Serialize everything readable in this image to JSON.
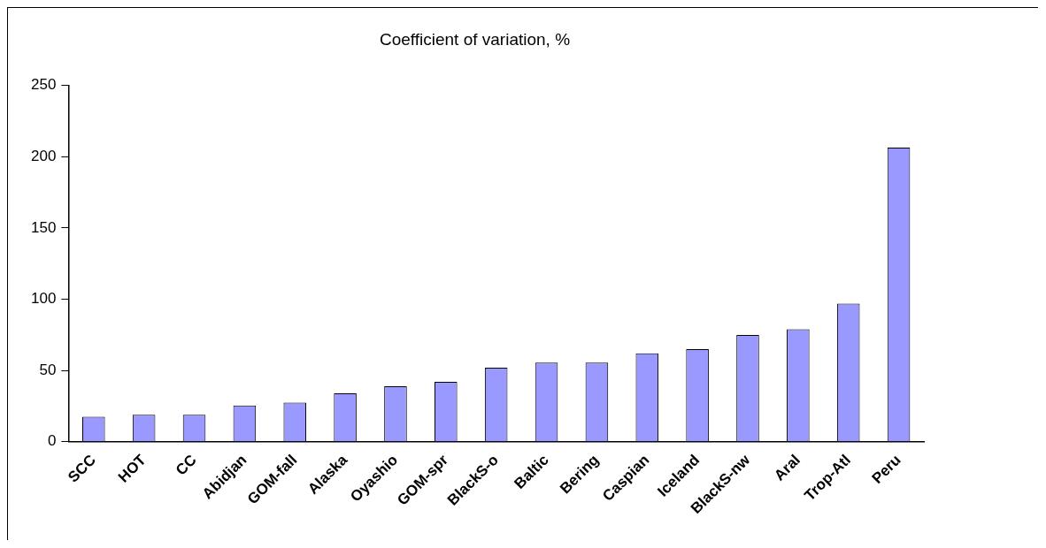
{
  "chart_data": {
    "type": "bar",
    "title": "Coefficient of variation, %",
    "categories": [
      "SCC",
      "HOT",
      "CC",
      "Abidjan",
      "GOM-fall",
      "Alaska",
      "Oyashio",
      "GOM-spr",
      "BlackS-o",
      "Baltic",
      "Bering",
      "Caspian",
      "Iceland",
      "BlackS-nw",
      "Aral",
      "Trop-Atl",
      "Peru"
    ],
    "values": [
      17.5,
      19,
      19,
      25.5,
      27.5,
      34,
      39,
      42,
      52,
      55.5,
      55.5,
      62,
      65,
      75,
      79,
      97,
      206.5
    ],
    "color": "#9999ff",
    "ylim": [
      0,
      250
    ],
    "yticks": [
      0,
      50,
      100,
      150,
      200,
      250
    ],
    "grid": false,
    "legend": false
  }
}
